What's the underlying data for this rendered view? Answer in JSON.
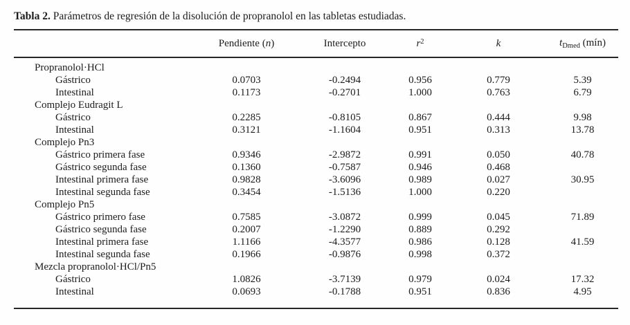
{
  "title": {
    "label": "Tabla 2.",
    "text": " Parámetros de regresión de la disolución de propranolol en las tabletas estudiadas."
  },
  "table": {
    "columns": {
      "pendiente": {
        "text": "Pendiente (",
        "var": "n",
        "close": ")"
      },
      "intercepto": {
        "text": "Intercepto"
      },
      "r2": {
        "var": "r",
        "sup": "2"
      },
      "k": {
        "var": "k"
      },
      "tdmed": {
        "var": "t",
        "sub": "Dmed",
        "unit": " (mín)"
      }
    },
    "rows": [
      {
        "type": "group",
        "label": "Propranolol·HCl",
        "values": [
          "",
          "",
          "",
          "",
          ""
        ]
      },
      {
        "type": "data",
        "label": "Gástrico",
        "values": [
          "0.0703",
          "-0.2494",
          "0.956",
          "0.779",
          "5.39"
        ]
      },
      {
        "type": "data",
        "label": "Intestinal",
        "values": [
          "0.1173",
          "-0.2701",
          "1.000",
          "0.763",
          "6.79"
        ]
      },
      {
        "type": "group",
        "label": "Complejo Eudragit L",
        "values": [
          "",
          "",
          "",
          "",
          ""
        ]
      },
      {
        "type": "data",
        "label": "Gástrico",
        "values": [
          "0.2285",
          "-0.8105",
          "0.867",
          "0.444",
          "9.98"
        ]
      },
      {
        "type": "data",
        "label": "Intestinal",
        "values": [
          "0.3121",
          "-1.1604",
          "0.951",
          "0.313",
          "13.78"
        ]
      },
      {
        "type": "group",
        "label": "Complejo Pn3",
        "values": [
          "",
          "",
          "",
          "",
          ""
        ]
      },
      {
        "type": "data",
        "label": "Gástrico primera fase",
        "values": [
          "0.9346",
          "-2.9872",
          "0.991",
          "0.050",
          "40.78"
        ]
      },
      {
        "type": "data",
        "label": "Gástrico segunda fase",
        "values": [
          "0.1360",
          "-0.7587",
          "0.946",
          "0.468",
          ""
        ]
      },
      {
        "type": "data",
        "label": "Intestinal primera fase",
        "values": [
          "0.9828",
          "-3.6096",
          "0.989",
          "0.027",
          "30.95"
        ]
      },
      {
        "type": "data",
        "label": "Intestinal segunda fase",
        "values": [
          "0.3454",
          "-1.5136",
          "1.000",
          "0.220",
          ""
        ]
      },
      {
        "type": "group",
        "label": "Complejo Pn5",
        "values": [
          "",
          "",
          "",
          "",
          ""
        ]
      },
      {
        "type": "data",
        "label": "Gástrico primero fase",
        "values": [
          "0.7585",
          "-3.0872",
          "0.999",
          "0.045",
          "71.89"
        ]
      },
      {
        "type": "data",
        "label": "Gástrico segunda fase",
        "values": [
          "0.2007",
          "-1.2290",
          "0.889",
          "0.292",
          ""
        ]
      },
      {
        "type": "data",
        "label": "Intestinal primera fase",
        "values": [
          "1.1166",
          "-4.3577",
          "0.986",
          "0.128",
          "41.59"
        ]
      },
      {
        "type": "data",
        "label": "Intestinal segunda fase",
        "values": [
          "0.1966",
          "-0.9876",
          "0.998",
          "0.372",
          ""
        ]
      },
      {
        "type": "group",
        "label": "Mezcla propranolol·HCl/Pn5",
        "values": [
          "",
          "",
          "",
          "",
          ""
        ]
      },
      {
        "type": "data",
        "label": "Gástrico",
        "values": [
          "1.0826",
          "-3.7139",
          "0.979",
          "0.024",
          "17.32"
        ]
      },
      {
        "type": "data",
        "label": "Intestinal",
        "values": [
          "0.0693",
          "-0.1788",
          "0.951",
          "0.836",
          "4.95"
        ]
      }
    ]
  }
}
